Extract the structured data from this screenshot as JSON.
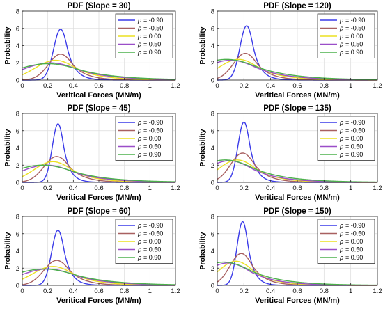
{
  "chart_data": [
    {
      "type": "line",
      "title": "PDF  (Slope = 30)",
      "xlabel": "Veritical Forces (MN/m)",
      "ylabel": "Probability",
      "xlim": [
        0,
        1.2
      ],
      "ylim": [
        0,
        8
      ],
      "xticks": [
        "0",
        "0.2",
        "0.4",
        "0.6",
        "0.8",
        "1",
        "1.2"
      ],
      "yticks": [
        "0",
        "2",
        "4",
        "6",
        "8"
      ],
      "legend_position": "top-right",
      "legend_symbol": "ρ",
      "series": [
        {
          "name": "= -0.90",
          "color": "#3a3ae8",
          "peak_x": 0.3,
          "peak_y": 5.9,
          "width": 0.055
        },
        {
          "name": "= -0.50",
          "color": "#a86060",
          "peak_x": 0.3,
          "peak_y": 3.0,
          "width": 0.095
        },
        {
          "name": "= 0.00",
          "color": "#ece020",
          "peak_x": 0.26,
          "peak_y": 2.3,
          "width": 0.16
        },
        {
          "name": "= 0.50",
          "color": "#9a4ec8",
          "peak_x": 0.22,
          "peak_y": 2.0,
          "width": 0.22
        },
        {
          "name": "= 0.90",
          "color": "#4cb04c",
          "peak_x": 0.2,
          "peak_y": 1.9,
          "width": 0.26
        }
      ]
    },
    {
      "type": "line",
      "title": "PDF  (Slope = 120)",
      "xlabel": "Veritical Forces (MN/m)",
      "ylabel": "Probability",
      "xlim": [
        0,
        1.2
      ],
      "ylim": [
        0,
        8
      ],
      "xticks": [
        "0",
        "0.2",
        "0.4",
        "0.6",
        "0.8",
        "1",
        "1.2"
      ],
      "yticks": [
        "0",
        "2",
        "4",
        "6",
        "8"
      ],
      "legend_position": "top-right",
      "legend_symbol": "ρ",
      "series": [
        {
          "name": "= -0.90",
          "color": "#3a3ae8",
          "peak_x": 0.22,
          "peak_y": 6.3,
          "width": 0.05
        },
        {
          "name": "= -0.50",
          "color": "#a86060",
          "peak_x": 0.21,
          "peak_y": 3.1,
          "width": 0.09
        },
        {
          "name": "= 0.00",
          "color": "#ece020",
          "peak_x": 0.16,
          "peak_y": 2.4,
          "width": 0.15
        },
        {
          "name": "= 0.50",
          "color": "#9a4ec8",
          "peak_x": 0.1,
          "peak_y": 2.3,
          "width": 0.2
        },
        {
          "name": "= 0.90",
          "color": "#4cb04c",
          "peak_x": 0.07,
          "peak_y": 2.4,
          "width": 0.24
        }
      ]
    },
    {
      "type": "line",
      "title": "PDF  (Slope = 45)",
      "xlabel": "Veritical Forces (MN/m)",
      "ylabel": "Probability",
      "xlim": [
        0,
        1.2
      ],
      "ylim": [
        0,
        8
      ],
      "xticks": [
        "0",
        "0.2",
        "0.4",
        "0.6",
        "0.8",
        "1",
        "1.2"
      ],
      "yticks": [
        "0",
        "2",
        "4",
        "6",
        "8"
      ],
      "legend_position": "top-right",
      "legend_symbol": "ρ",
      "series": [
        {
          "name": "= -0.90",
          "color": "#3a3ae8",
          "peak_x": 0.28,
          "peak_y": 6.8,
          "width": 0.045
        },
        {
          "name": "= -0.50",
          "color": "#a86060",
          "peak_x": 0.27,
          "peak_y": 3.0,
          "width": 0.1
        },
        {
          "name": "= 0.00",
          "color": "#ece020",
          "peak_x": 0.24,
          "peak_y": 2.4,
          "width": 0.15
        },
        {
          "name": "= 0.50",
          "color": "#9a4ec8",
          "peak_x": 0.19,
          "peak_y": 2.0,
          "width": 0.21
        },
        {
          "name": "= 0.90",
          "color": "#4cb04c",
          "peak_x": 0.16,
          "peak_y": 2.0,
          "width": 0.25
        }
      ]
    },
    {
      "type": "line",
      "title": "PDF  (Slope = 135)",
      "xlabel": "Veritical Forces (MN/m)",
      "ylabel": "Probability",
      "xlim": [
        0,
        1.2
      ],
      "ylim": [
        0,
        8
      ],
      "xticks": [
        "0",
        "0.2",
        "0.4",
        "0.6",
        "0.8",
        "1",
        "1.2"
      ],
      "yticks": [
        "0",
        "2",
        "4",
        "6",
        "8"
      ],
      "legend_position": "top-right",
      "legend_symbol": "ρ",
      "series": [
        {
          "name": "= -0.90",
          "color": "#3a3ae8",
          "peak_x": 0.2,
          "peak_y": 7.0,
          "width": 0.045
        },
        {
          "name": "= -0.50",
          "color": "#a86060",
          "peak_x": 0.19,
          "peak_y": 3.4,
          "width": 0.09
        },
        {
          "name": "= 0.00",
          "color": "#ece020",
          "peak_x": 0.15,
          "peak_y": 2.6,
          "width": 0.14
        },
        {
          "name": "= 0.50",
          "color": "#9a4ec8",
          "peak_x": 0.09,
          "peak_y": 2.5,
          "width": 0.18
        },
        {
          "name": "= 0.90",
          "color": "#4cb04c",
          "peak_x": 0.06,
          "peak_y": 2.6,
          "width": 0.22
        }
      ]
    },
    {
      "type": "line",
      "title": "PDF  (Slope = 60)",
      "xlabel": "Veritical Forces (MN/m)",
      "ylabel": "Probability",
      "xlim": [
        0,
        1.2
      ],
      "ylim": [
        0,
        8
      ],
      "xticks": [
        "0",
        "0.2",
        "0.4",
        "0.6",
        "0.8",
        "1",
        "1.2"
      ],
      "yticks": [
        "0",
        "2",
        "4",
        "6",
        "8"
      ],
      "legend_position": "top-right",
      "legend_symbol": "ρ",
      "series": [
        {
          "name": "= -0.90",
          "color": "#3a3ae8",
          "peak_x": 0.28,
          "peak_y": 6.4,
          "width": 0.05
        },
        {
          "name": "= -0.50",
          "color": "#a86060",
          "peak_x": 0.27,
          "peak_y": 2.9,
          "width": 0.1
        },
        {
          "name": "= 0.00",
          "color": "#ece020",
          "peak_x": 0.24,
          "peak_y": 2.2,
          "width": 0.16
        },
        {
          "name": "= 0.50",
          "color": "#9a4ec8",
          "peak_x": 0.2,
          "peak_y": 1.9,
          "width": 0.22
        },
        {
          "name": "= 0.90",
          "color": "#4cb04c",
          "peak_x": 0.17,
          "peak_y": 1.9,
          "width": 0.26
        }
      ]
    },
    {
      "type": "line",
      "title": "PDF  (Slope = 150)",
      "xlabel": "Veritical Forces (MN/m)",
      "ylabel": "Probability",
      "xlim": [
        0,
        1.2
      ],
      "ylim": [
        0,
        8
      ],
      "xticks": [
        "0",
        "0.2",
        "0.4",
        "0.6",
        "0.8",
        "1",
        "1.2"
      ],
      "yticks": [
        "0",
        "2",
        "4",
        "6",
        "8"
      ],
      "legend_position": "top-right",
      "legend_symbol": "ρ",
      "series": [
        {
          "name": "= -0.90",
          "color": "#3a3ae8",
          "peak_x": 0.19,
          "peak_y": 7.4,
          "width": 0.042
        },
        {
          "name": "= -0.50",
          "color": "#a86060",
          "peak_x": 0.18,
          "peak_y": 3.7,
          "width": 0.085
        },
        {
          "name": "= 0.00",
          "color": "#ece020",
          "peak_x": 0.14,
          "peak_y": 2.8,
          "width": 0.13
        },
        {
          "name": "= 0.50",
          "color": "#9a4ec8",
          "peak_x": 0.08,
          "peak_y": 2.6,
          "width": 0.17
        },
        {
          "name": "= 0.90",
          "color": "#4cb04c",
          "peak_x": 0.05,
          "peak_y": 2.7,
          "width": 0.21
        }
      ]
    }
  ]
}
